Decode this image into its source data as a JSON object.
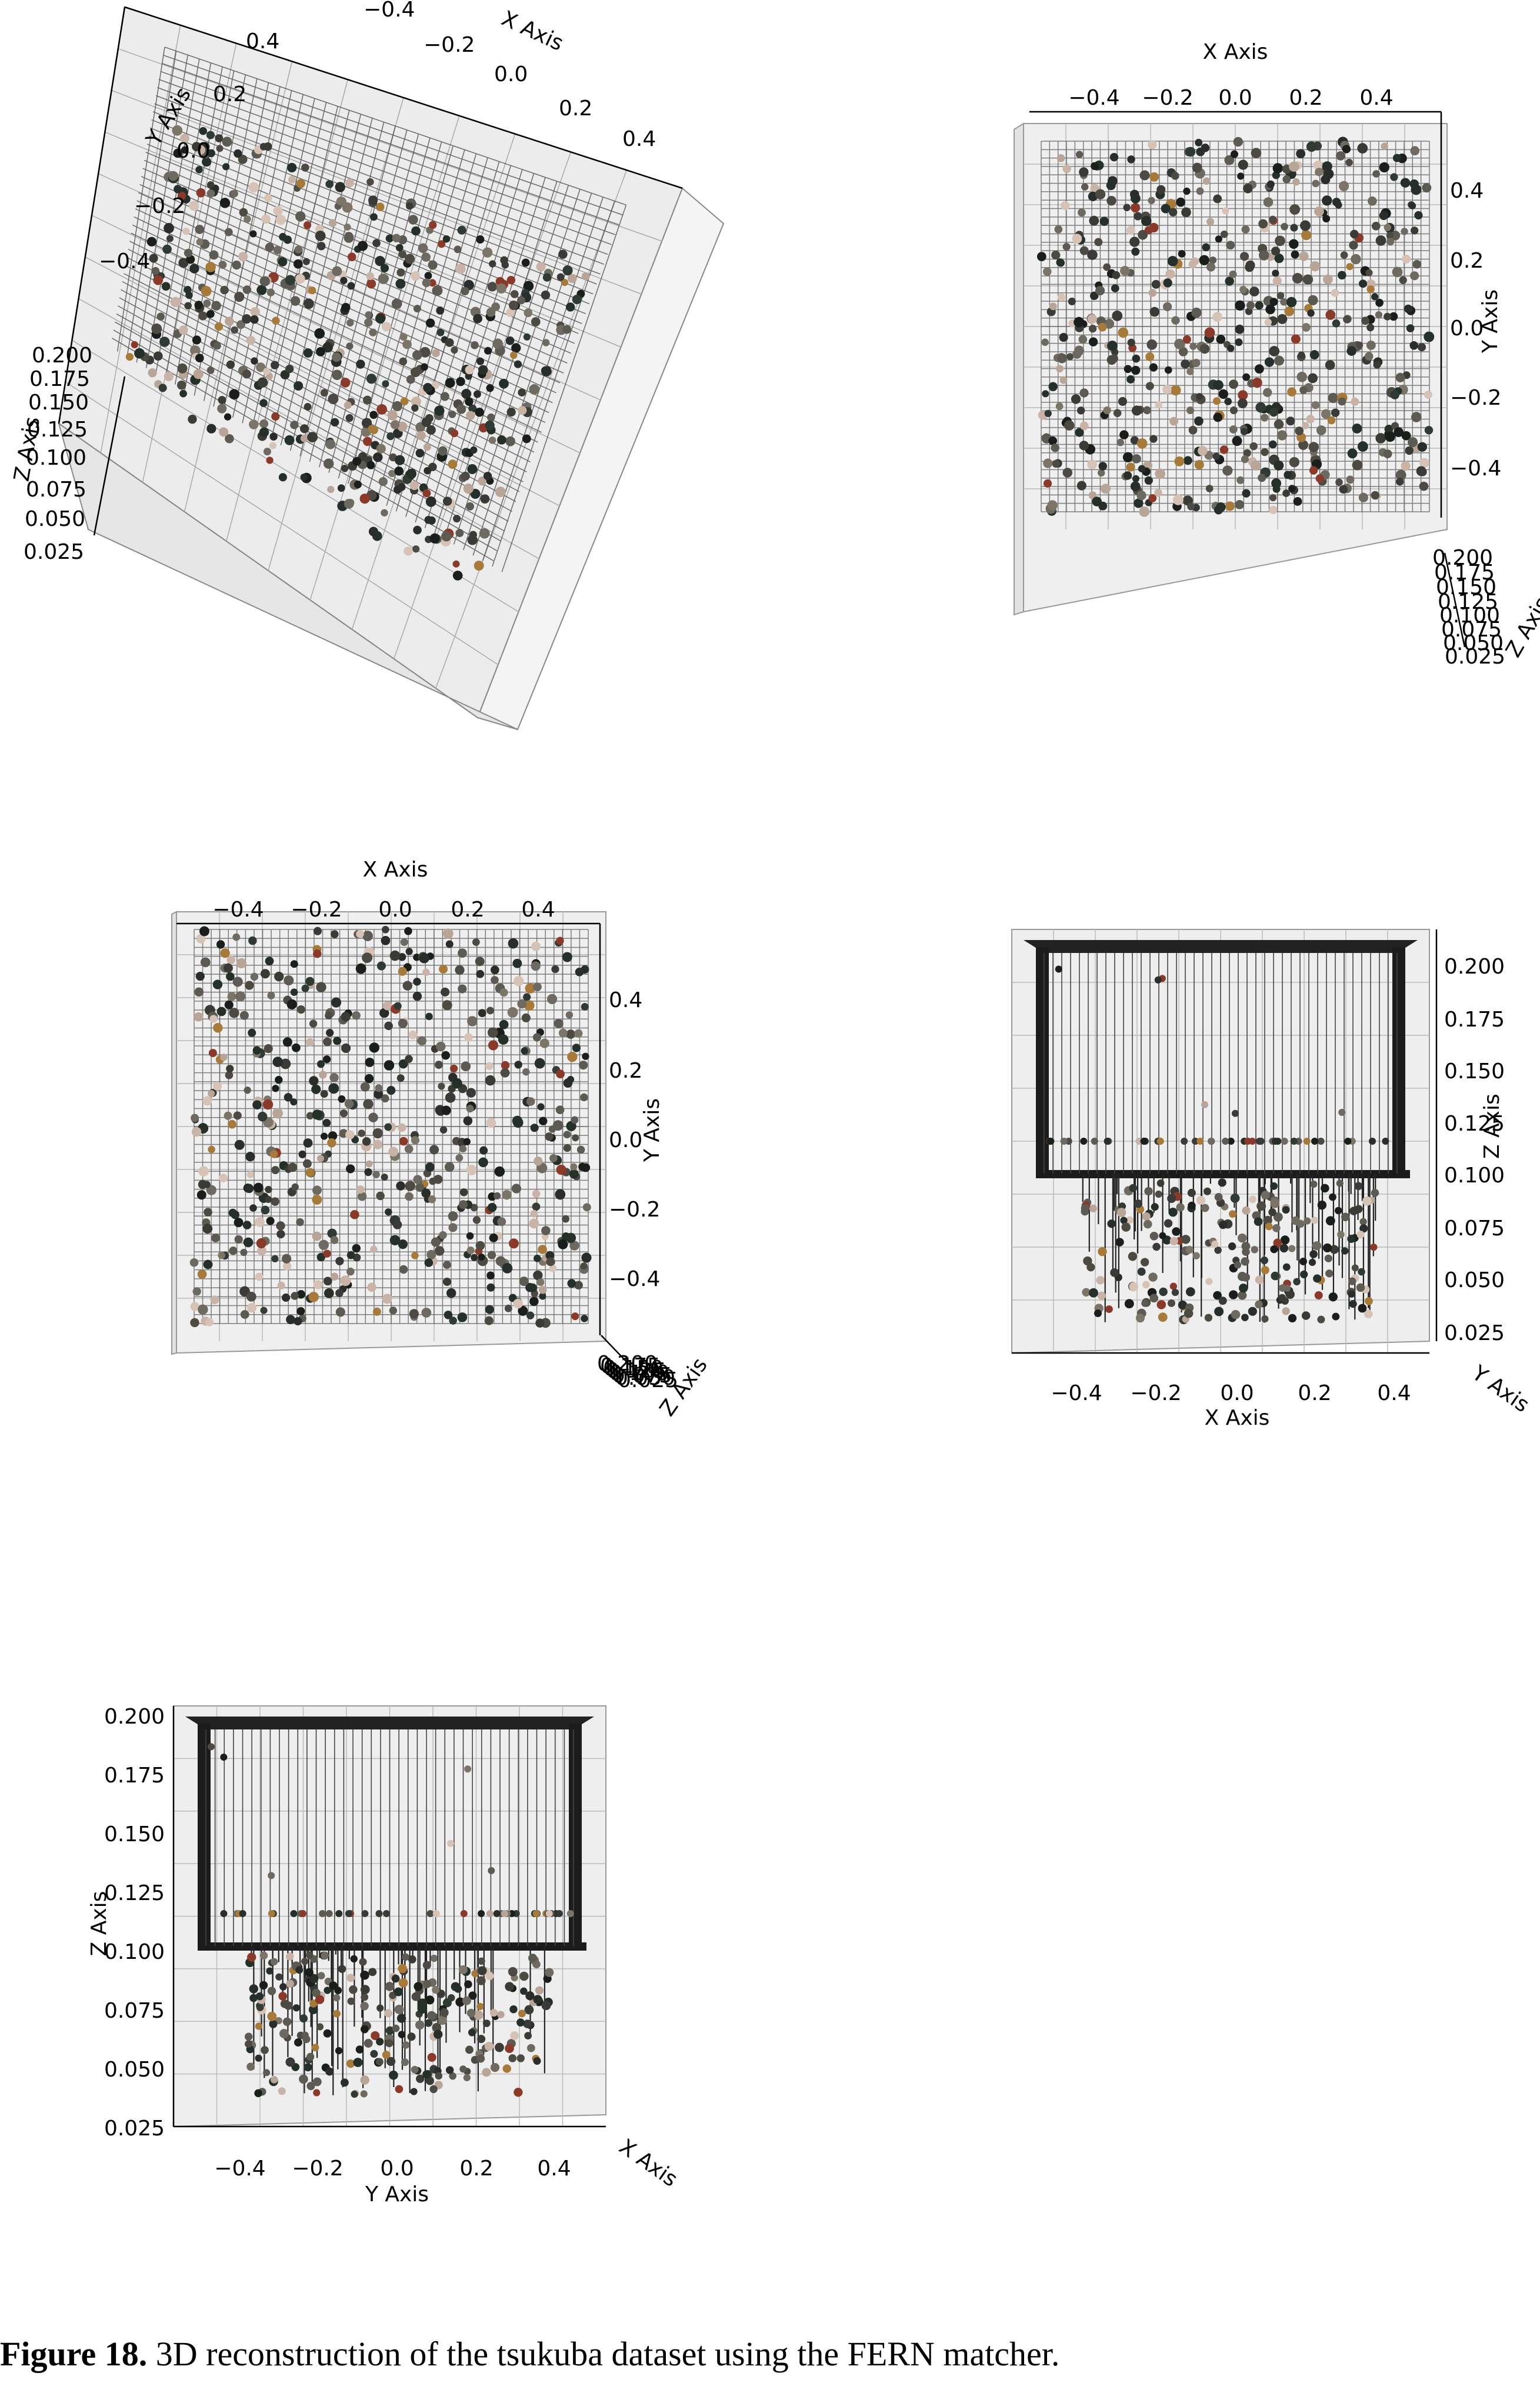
{
  "caption": {
    "label": "Figure 18.",
    "text": "3D reconstruction of the tsukuba dataset using the FERN matcher."
  },
  "chart_data": [
    {
      "type": "scatter",
      "view": "oblique",
      "xlabel": "X Axis",
      "ylabel": "Y Axis",
      "zlabel": "Z Axis",
      "xticks": [
        "−0.4",
        "−0.2",
        "0.0",
        "0.2",
        "0.4"
      ],
      "yticks": [
        "0.4",
        "0.2",
        "0.0",
        "−0.2",
        "−0.4"
      ],
      "zticks": [
        "0.200",
        "0.175",
        "0.150",
        "0.125",
        "0.100",
        "0.075",
        "0.050",
        "0.025"
      ],
      "xlim": [
        -0.5,
        0.5
      ],
      "ylim": [
        -0.5,
        0.5
      ],
      "zlim": [
        0.025,
        0.2
      ]
    },
    {
      "type": "scatter",
      "view": "top-down",
      "xlabel": "X Axis",
      "ylabel": "Y Axis",
      "zlabel": "Z Axis",
      "xticks": [
        "−0.4",
        "−0.2",
        "0.0",
        "0.2",
        "0.4"
      ],
      "yticks": [
        "0.4",
        "0.2",
        "0.0",
        "−0.2",
        "−0.4"
      ],
      "zticks": [
        "0.200",
        "0.175",
        "0.150",
        "0.125",
        "0.100",
        "0.075",
        "0.050",
        "0.025"
      ],
      "xlim": [
        -0.5,
        0.5
      ],
      "ylim": [
        -0.5,
        0.5
      ]
    },
    {
      "type": "scatter",
      "view": "top-down",
      "xlabel": "X Axis",
      "ylabel": "Y Axis",
      "zlabel": "Z Axis",
      "xticks": [
        "−0.4",
        "−0.2",
        "0.0",
        "0.2",
        "0.4"
      ],
      "yticks": [
        "0.4",
        "0.2",
        "0.0",
        "−0.2",
        "−0.4"
      ],
      "xlim": [
        -0.5,
        0.5
      ],
      "ylim": [
        -0.5,
        0.5
      ]
    },
    {
      "type": "scatter",
      "view": "front (X–Z)",
      "xlabel": "X Axis",
      "ylabel": "Y Axis",
      "zlabel": "Z Axis",
      "xticks": [
        "−0.4",
        "−0.2",
        "0.0",
        "0.2",
        "0.4"
      ],
      "zticks": [
        "0.200",
        "0.175",
        "0.150",
        "0.125",
        "0.100",
        "0.075",
        "0.050",
        "0.025"
      ],
      "xlim": [
        -0.5,
        0.5
      ],
      "zlim": [
        0.025,
        0.2
      ]
    },
    {
      "type": "scatter",
      "view": "side (Y–Z)",
      "xlabel": "X Axis",
      "ylabel": "Y Axis",
      "zlabel": "Z Axis",
      "yticks": [
        "−0.4",
        "−0.2",
        "0.0",
        "0.2",
        "0.4"
      ],
      "zticks": [
        "0.200",
        "0.175",
        "0.150",
        "0.125",
        "0.100",
        "0.075",
        "0.050",
        "0.025"
      ],
      "ylim": [
        -0.5,
        0.5
      ],
      "zlim": [
        0.025,
        0.2
      ]
    }
  ]
}
